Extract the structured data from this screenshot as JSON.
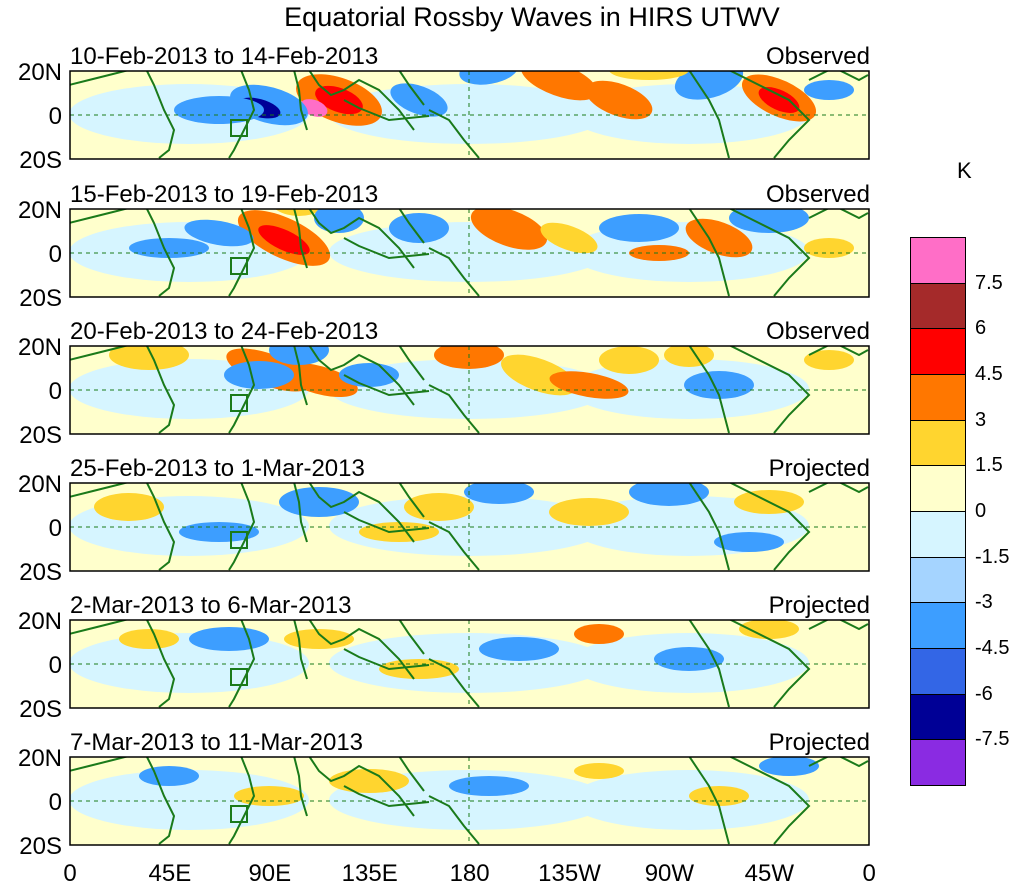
{
  "title": "Equatorial Rossby Waves in HIRS UTWV",
  "lat_labels": [
    "20N",
    "0",
    "20S"
  ],
  "x_ticks": [
    "0",
    "45E",
    "90E",
    "135E",
    "180",
    "135W",
    "90W",
    "45W",
    "0"
  ],
  "panels": [
    {
      "date_range": "10-Feb-2013 to 14-Feb-2013",
      "status": "Observed",
      "intensity": 1.0
    },
    {
      "date_range": "15-Feb-2013 to 19-Feb-2013",
      "status": "Observed",
      "intensity": 0.9
    },
    {
      "date_range": "20-Feb-2013 to 24-Feb-2013",
      "status": "Observed",
      "intensity": 0.75
    },
    {
      "date_range": "25-Feb-2013 to 1-Mar-2013",
      "status": "Projected",
      "intensity": 0.45
    },
    {
      "date_range": "2-Mar-2013 to 6-Mar-2013",
      "status": "Projected",
      "intensity": 0.35
    },
    {
      "date_range": "7-Mar-2013 to 11-Mar-2013",
      "status": "Projected",
      "intensity": 0.3
    }
  ],
  "colorbar": {
    "unit": "K",
    "labels": [
      "7.5",
      "6",
      "4.5",
      "3",
      "1.5",
      "0",
      "-1.5",
      "-3",
      "-4.5",
      "-6",
      "-7.5"
    ],
    "colors": [
      "#ff6ec7",
      "#a52a2a",
      "#ff0000",
      "#ff7700",
      "#ffd52f",
      "#ffffcc",
      "#d6f5ff",
      "#a5d4ff",
      "#3d9eff",
      "#3366e6",
      "#000096",
      "#8a2be2"
    ]
  }
}
